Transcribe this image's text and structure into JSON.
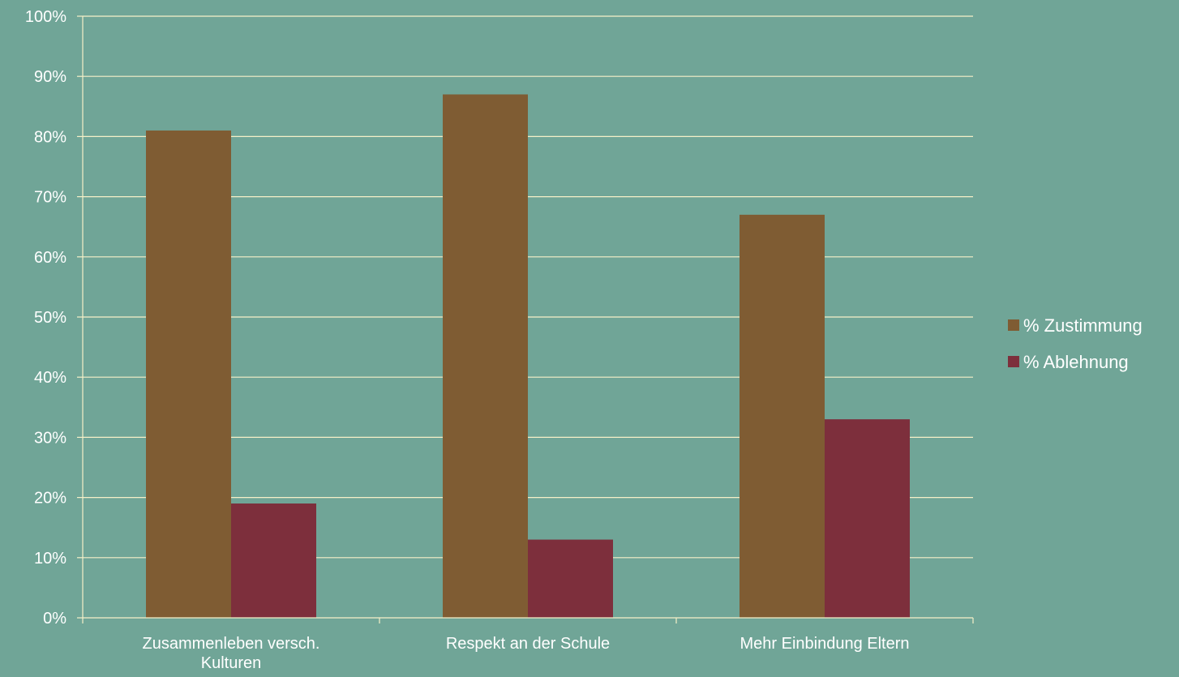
{
  "chart_data": {
    "type": "bar",
    "categories": [
      [
        "Zusammenleben versch.",
        "Kulturen"
      ],
      [
        "Respekt an der Schule"
      ],
      [
        "Mehr Einbindung Eltern"
      ]
    ],
    "series": [
      {
        "name": "% Zustimmung",
        "color": "#7f5c33",
        "values": [
          81,
          87,
          67
        ]
      },
      {
        "name": "% Ablehnung",
        "color": "#7d2f3c",
        "values": [
          19,
          13,
          33
        ]
      }
    ],
    "ylim": [
      0,
      100
    ],
    "yticks": [
      0,
      10,
      20,
      30,
      40,
      50,
      60,
      70,
      80,
      90,
      100
    ],
    "ytick_labels": [
      "0%",
      "10%",
      "20%",
      "30%",
      "40%",
      "50%",
      "60%",
      "70%",
      "80%",
      "90%",
      "100%"
    ],
    "grid": true,
    "legend": "right",
    "colors": {
      "background": "#70a597",
      "grid": "#f5f0c8",
      "text": "#ffffff"
    }
  }
}
